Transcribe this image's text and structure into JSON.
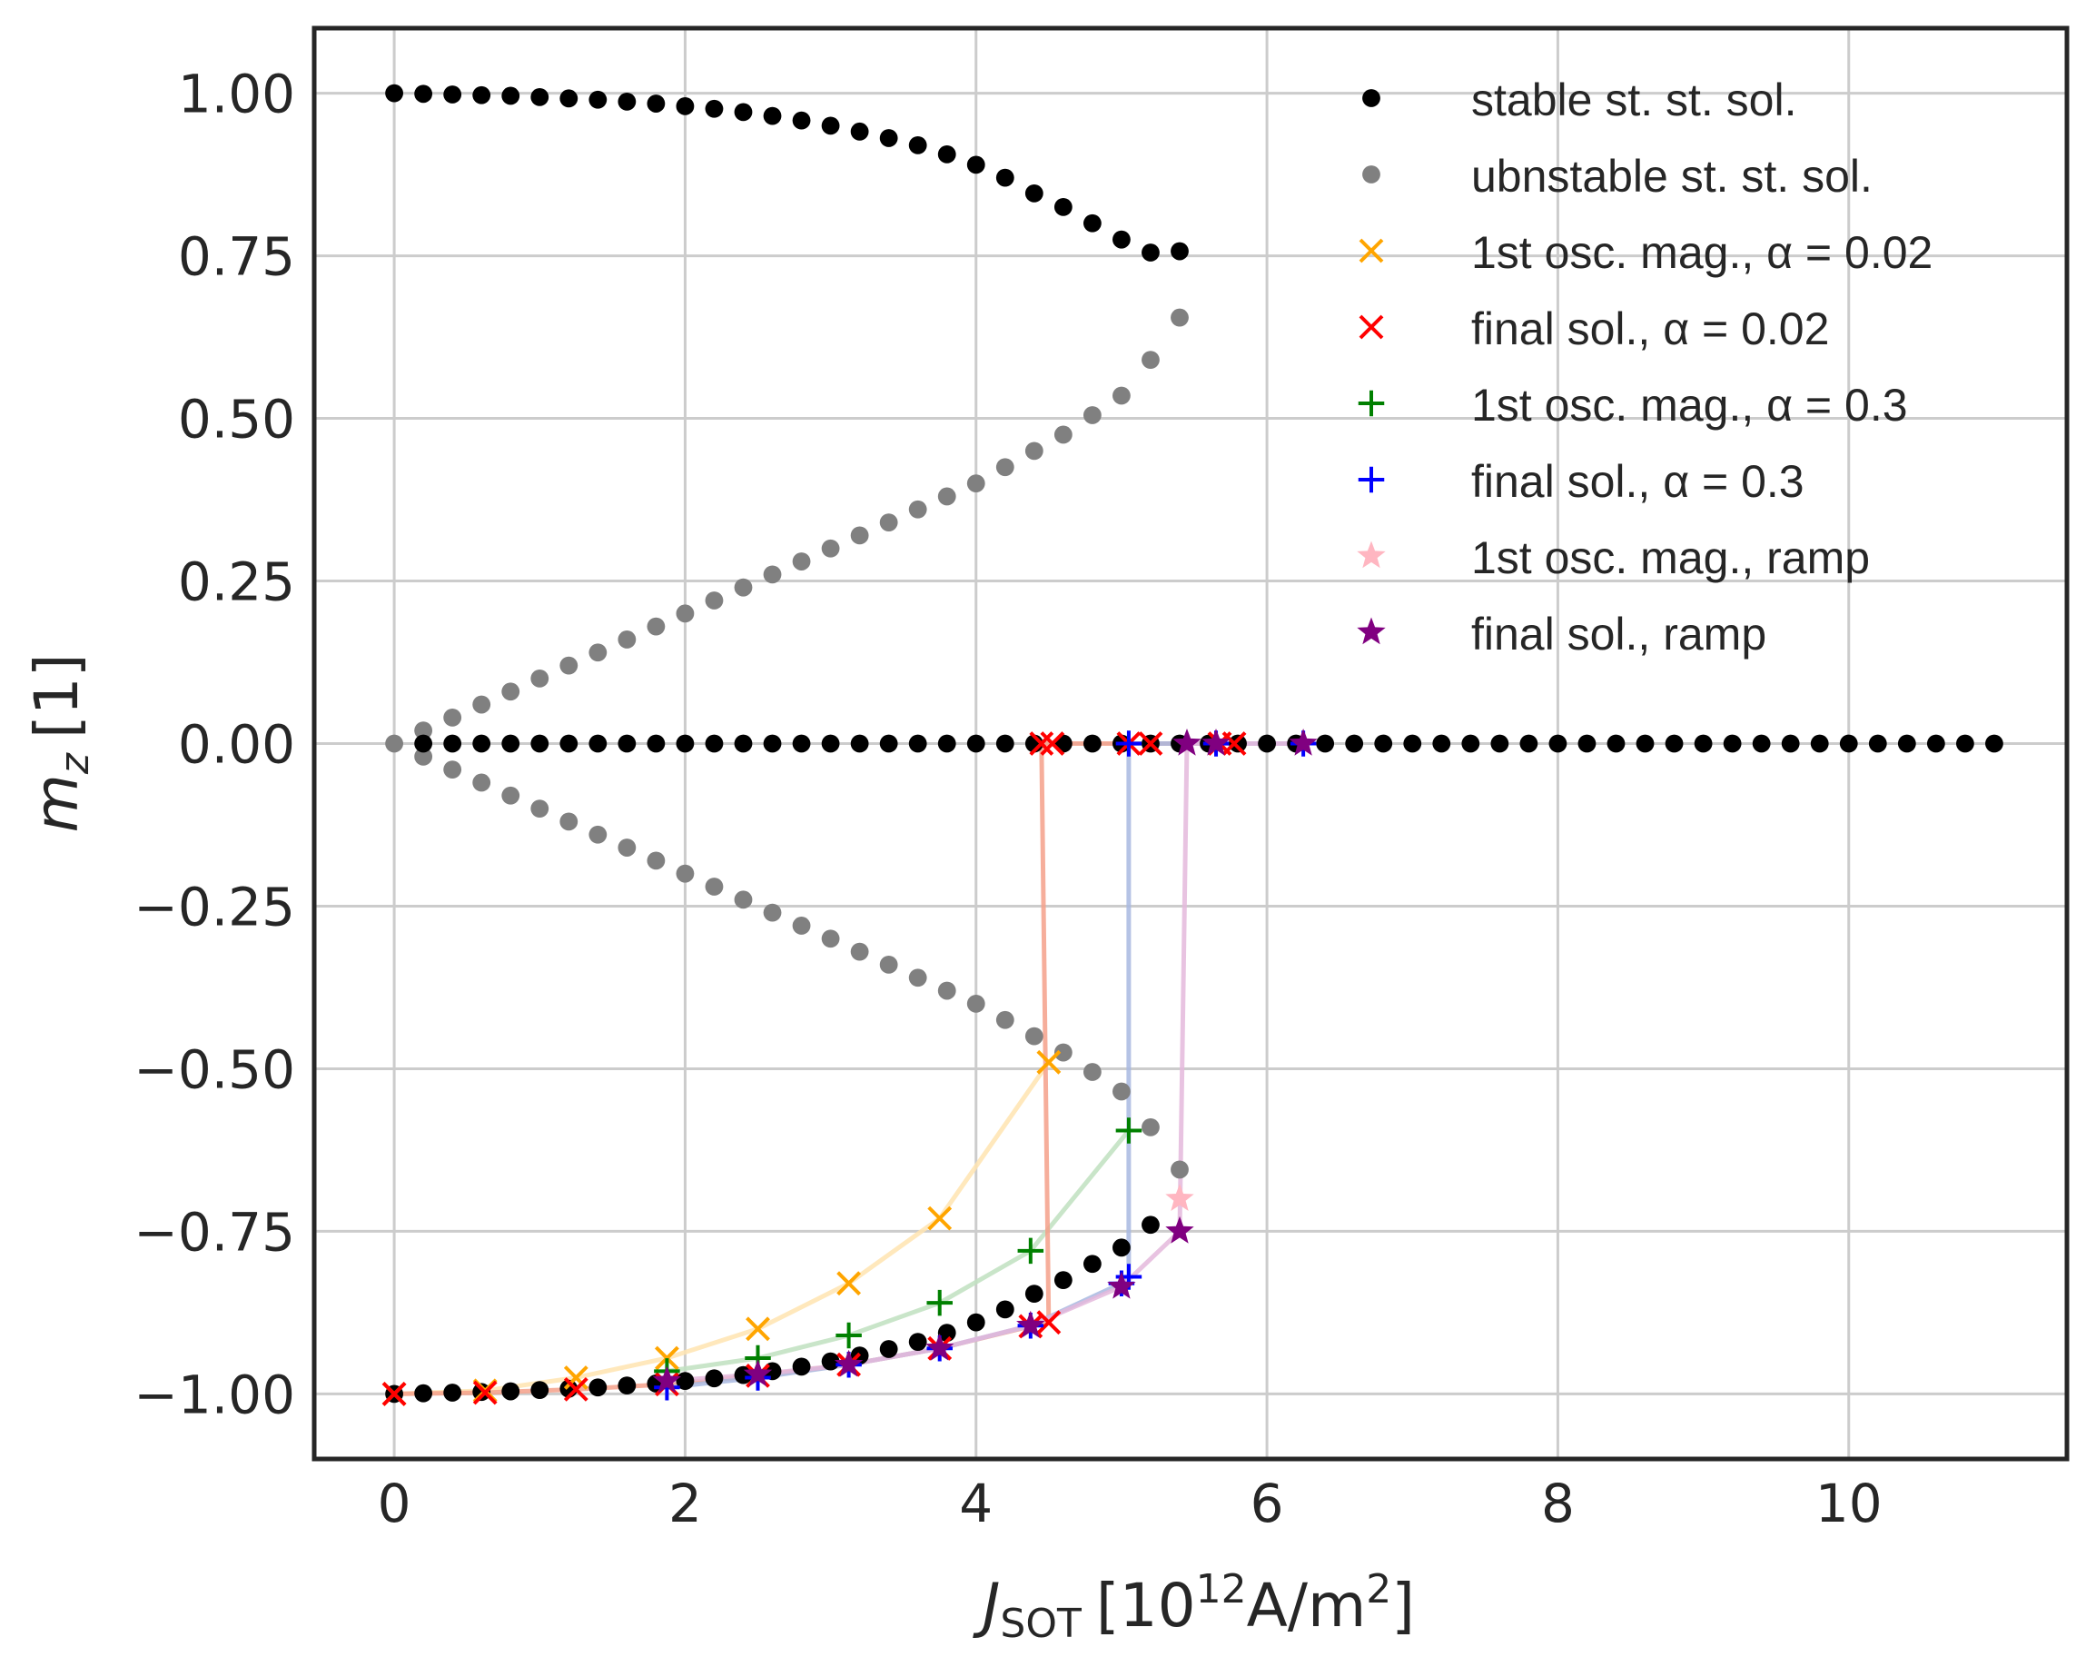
{
  "chart_data": {
    "type": "scatter",
    "xlabel": {
      "main": "J",
      "sub": "SOT",
      "unit_pre": "[10",
      "unit_sup": "12",
      "unit_mid": "A/m",
      "unit_sup2": "2",
      "unit_post": "]"
    },
    "ylabel": {
      "main": "m",
      "sub": "z",
      "unit": "[1]"
    },
    "xlim": [
      -0.55,
      11.5
    ],
    "ylim": [
      -1.1,
      1.1
    ],
    "xticks": [
      {
        "v": 0,
        "label": "0"
      },
      {
        "v": 2,
        "label": "2"
      },
      {
        "v": 4,
        "label": "4"
      },
      {
        "v": 6,
        "label": "6"
      },
      {
        "v": 8,
        "label": "8"
      },
      {
        "v": 10,
        "label": "10"
      }
    ],
    "yticks": [
      {
        "v": 1,
        "label": "1.00"
      },
      {
        "v": 0.75,
        "label": "0.75"
      },
      {
        "v": 0.5,
        "label": "0.50"
      },
      {
        "v": 0.25,
        "label": "0.25"
      },
      {
        "v": 0,
        "label": "0.00"
      },
      {
        "v": -0.25,
        "label": "−0.25"
      },
      {
        "v": -0.5,
        "label": "−0.50"
      },
      {
        "v": -0.75,
        "label": "−0.75"
      },
      {
        "v": -1,
        "label": "−1.00"
      }
    ],
    "grid": true,
    "legend_position": "top-right",
    "series": [
      {
        "name": "stable  st. st. sol.",
        "marker": "dot",
        "color": "#000000",
        "x": [
          0,
          0.2,
          0.4,
          0.6,
          0.8,
          1.0,
          1.2,
          1.4,
          1.6,
          1.8,
          2.0,
          2.2,
          2.4,
          2.6,
          2.8,
          3.0,
          3.2,
          3.4,
          3.6,
          3.8,
          4.0,
          4.2,
          4.4,
          4.6,
          4.8,
          5.0,
          5.2,
          5.4,
          0.2,
          0.4,
          0.6,
          0.8,
          1.0,
          1.2,
          1.4,
          1.6,
          1.8,
          2.0,
          2.2,
          2.4,
          2.6,
          2.8,
          3.0,
          3.2,
          3.4,
          3.6,
          3.8,
          4.0,
          4.2,
          4.4,
          4.6,
          4.8,
          5.0,
          5.2,
          5.4,
          5.6,
          5.8,
          6.0,
          6.2,
          6.4,
          6.6,
          6.8,
          7.0,
          7.2,
          7.4,
          7.6,
          7.8,
          8.0,
          8.2,
          8.4,
          8.6,
          8.8,
          9.0,
          9.2,
          9.4,
          9.6,
          9.8,
          10.0,
          10.2,
          10.4,
          10.6,
          10.8,
          11.0,
          0,
          0.2,
          0.4,
          0.6,
          0.8,
          1.0,
          1.2,
          1.4,
          1.6,
          1.8,
          2.0,
          2.2,
          2.4,
          2.6,
          2.8,
          3.0,
          3.2,
          3.4,
          3.6,
          3.8,
          4.0,
          4.2,
          4.4,
          4.6,
          4.8,
          5.0,
          5.2
        ],
        "y": [
          1.0,
          0.999,
          0.998,
          0.997,
          0.996,
          0.994,
          0.992,
          0.99,
          0.987,
          0.984,
          0.98,
          0.976,
          0.971,
          0.965,
          0.958,
          0.95,
          0.941,
          0.931,
          0.92,
          0.906,
          0.89,
          0.87,
          0.846,
          0.825,
          0.8,
          0.775,
          0.755,
          0.757,
          0,
          0,
          0,
          0,
          0,
          0,
          0,
          0,
          0,
          0,
          0,
          0,
          0,
          0,
          0,
          0,
          0,
          0,
          0,
          0,
          0,
          0,
          0,
          0,
          0,
          0,
          0,
          0,
          0,
          0,
          0,
          0,
          0,
          0,
          0,
          0,
          0,
          0,
          0,
          0,
          0,
          0,
          0,
          0,
          0,
          0,
          0,
          0,
          0,
          0,
          0,
          0,
          0,
          0,
          0,
          -1.0,
          -0.999,
          -0.998,
          -0.997,
          -0.996,
          -0.994,
          -0.992,
          -0.99,
          -0.987,
          -0.984,
          -0.98,
          -0.976,
          -0.971,
          -0.965,
          -0.958,
          -0.95,
          -0.941,
          -0.931,
          -0.92,
          -0.906,
          -0.89,
          -0.87,
          -0.846,
          -0.825,
          -0.8,
          -0.775,
          -0.74
        ]
      },
      {
        "name": "ubnstable st. st. sol.",
        "marker": "dot",
        "color": "#808080",
        "x": [
          0,
          0.2,
          0.4,
          0.6,
          0.8,
          1.0,
          1.2,
          1.4,
          1.6,
          1.8,
          2.0,
          2.2,
          2.4,
          2.6,
          2.8,
          3.0,
          3.2,
          3.4,
          3.6,
          3.8,
          4.0,
          4.2,
          4.4,
          4.6,
          4.8,
          5.0,
          5.2,
          5.4,
          0.2,
          0.4,
          0.6,
          0.8,
          1.0,
          1.2,
          1.4,
          1.6,
          1.8,
          2.0,
          2.2,
          2.4,
          2.6,
          2.8,
          3.0,
          3.2,
          3.4,
          3.6,
          3.8,
          4.0,
          4.2,
          4.4,
          4.6,
          4.8,
          5.0,
          5.2,
          5.4
        ],
        "y": [
          0,
          0.02,
          0.04,
          0.06,
          0.08,
          0.1,
          0.12,
          0.14,
          0.16,
          0.18,
          0.2,
          0.22,
          0.24,
          0.26,
          0.28,
          0.3,
          0.32,
          0.34,
          0.36,
          0.38,
          0.4,
          0.425,
          0.45,
          0.475,
          0.505,
          0.535,
          0.59,
          0.655,
          -0.02,
          -0.04,
          -0.06,
          -0.08,
          -0.1,
          -0.12,
          -0.14,
          -0.16,
          -0.18,
          -0.2,
          -0.22,
          -0.24,
          -0.26,
          -0.28,
          -0.3,
          -0.32,
          -0.34,
          -0.36,
          -0.38,
          -0.4,
          -0.425,
          -0.45,
          -0.475,
          -0.505,
          -0.535,
          -0.59,
          -0.655
        ]
      },
      {
        "name": "1st osc. mag., α = 0.02",
        "marker": "x",
        "color": "#ffa500",
        "line_color": "#ffe4b0",
        "x": [
          0,
          0.625,
          1.25,
          1.875,
          2.5,
          3.125,
          3.75,
          4.5
        ],
        "y": [
          -1.0,
          -0.995,
          -0.975,
          -0.945,
          -0.9,
          -0.83,
          -0.73,
          -0.49
        ]
      },
      {
        "name": "final sol., α = 0.02",
        "marker": "x",
        "color": "#ff0000",
        "line_color": "#f5a08a",
        "x": [
          0,
          0.625,
          1.25,
          1.875,
          2.5,
          3.125,
          3.75,
          4.375,
          4.5,
          4.45,
          4.525,
          5.05,
          5.2,
          5.675,
          5.775
        ],
        "y": [
          -1.0,
          -0.998,
          -0.993,
          -0.985,
          -0.972,
          -0.955,
          -0.93,
          -0.896,
          -0.89,
          0,
          0,
          0,
          0,
          0,
          0
        ]
      },
      {
        "name": "1st osc. mag., α = 0.3",
        "marker": "plus",
        "color": "#008000",
        "line_color": "#bfe0bf",
        "x": [
          1.875,
          2.5,
          3.125,
          3.75,
          4.375,
          5.05
        ],
        "y": [
          -0.965,
          -0.945,
          -0.91,
          -0.86,
          -0.78,
          -0.595
        ]
      },
      {
        "name": "final sol., α = 0.3",
        "marker": "plus",
        "color": "#0000ff",
        "line_color": "#a8b8e0",
        "x": [
          1.875,
          2.5,
          3.125,
          3.75,
          4.375,
          5.0,
          5.05,
          5.05,
          5.65,
          6.25
        ],
        "y": [
          -0.99,
          -0.975,
          -0.955,
          -0.93,
          -0.895,
          -0.83,
          -0.82,
          0,
          0,
          0
        ]
      },
      {
        "name": "1st osc. mag., ramp",
        "marker": "star",
        "color": "#ffb6c1",
        "x": [
          5.4
        ],
        "y": [
          -0.7
        ]
      },
      {
        "name": "final sol., ramp",
        "marker": "star",
        "color": "#800080",
        "line_color": "#e4b8dc",
        "x": [
          1.875,
          2.5,
          3.125,
          3.75,
          4.375,
          5.0,
          5.4,
          5.45,
          5.65,
          6.25
        ],
        "y": [
          -0.98,
          -0.97,
          -0.955,
          -0.93,
          -0.895,
          -0.835,
          -0.75,
          0,
          0,
          0
        ]
      }
    ]
  }
}
